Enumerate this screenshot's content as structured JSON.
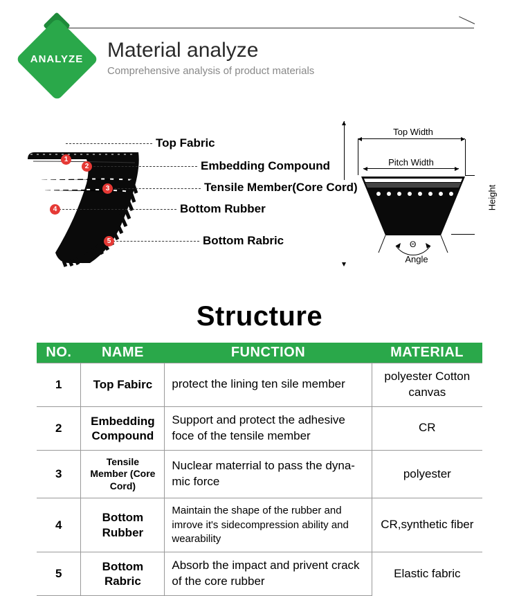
{
  "colors": {
    "accent_green": "#2aa84a",
    "accent_green_dark": "#1e8a3a",
    "dot_red": "#e53935",
    "text_dark": "#2a2a2a",
    "text_muted": "#888888",
    "border_gray": "#999999",
    "belt_black": "#0a0a0a"
  },
  "header": {
    "badge": "ANALYZE",
    "title": "Material analyze",
    "subtitle": "Comprehensive analysis of product materials"
  },
  "belt_labels": {
    "l1": "Top Fabric",
    "l2": "Embedding Compound",
    "l3": "Tensile Member(Core Cord)",
    "l4": "Bottom Rubber",
    "l5": "Bottom Rabric",
    "n1": "1",
    "n2": "2",
    "n3": "3",
    "n4": "4",
    "n5": "5"
  },
  "cross_section": {
    "top_width": "Top Width",
    "pitch_width": "Pitch Width",
    "height": "Height",
    "angle": "Angle",
    "theta": "Θ"
  },
  "structure": {
    "title": "Structure",
    "headers": {
      "no": "NO.",
      "name": "NAME",
      "function": "FUNCTION",
      "material": "MATERIAL"
    },
    "rows": [
      {
        "no": "1",
        "name": "Top Fabirc",
        "name_small": false,
        "function": "protect the lining ten sile member",
        "func_small": false,
        "material": "polyester Cotton canvas"
      },
      {
        "no": "2",
        "name": "Embedding Compound",
        "name_small": false,
        "function": "Support and protect the adhesive foce of the tensile member",
        "func_small": false,
        "material": "CR"
      },
      {
        "no": "3",
        "name": "Tensile Member (Core Cord)",
        "name_small": true,
        "function": "Nuclear materrial to pass the dyna-mic force",
        "func_small": false,
        "material": "polyester"
      },
      {
        "no": "4",
        "name": "Bottom Rubber",
        "name_small": false,
        "function": "Maintain the shape of the rubber and imrove it's sidecompression ability and wearability",
        "func_small": true,
        "material": "CR,synthetic fiber"
      },
      {
        "no": "5",
        "name": "Bottom Rabric",
        "name_small": false,
        "function": "Absorb the impact and privent crack of the core rubber",
        "func_small": false,
        "material": "Elastic fabric"
      }
    ]
  }
}
